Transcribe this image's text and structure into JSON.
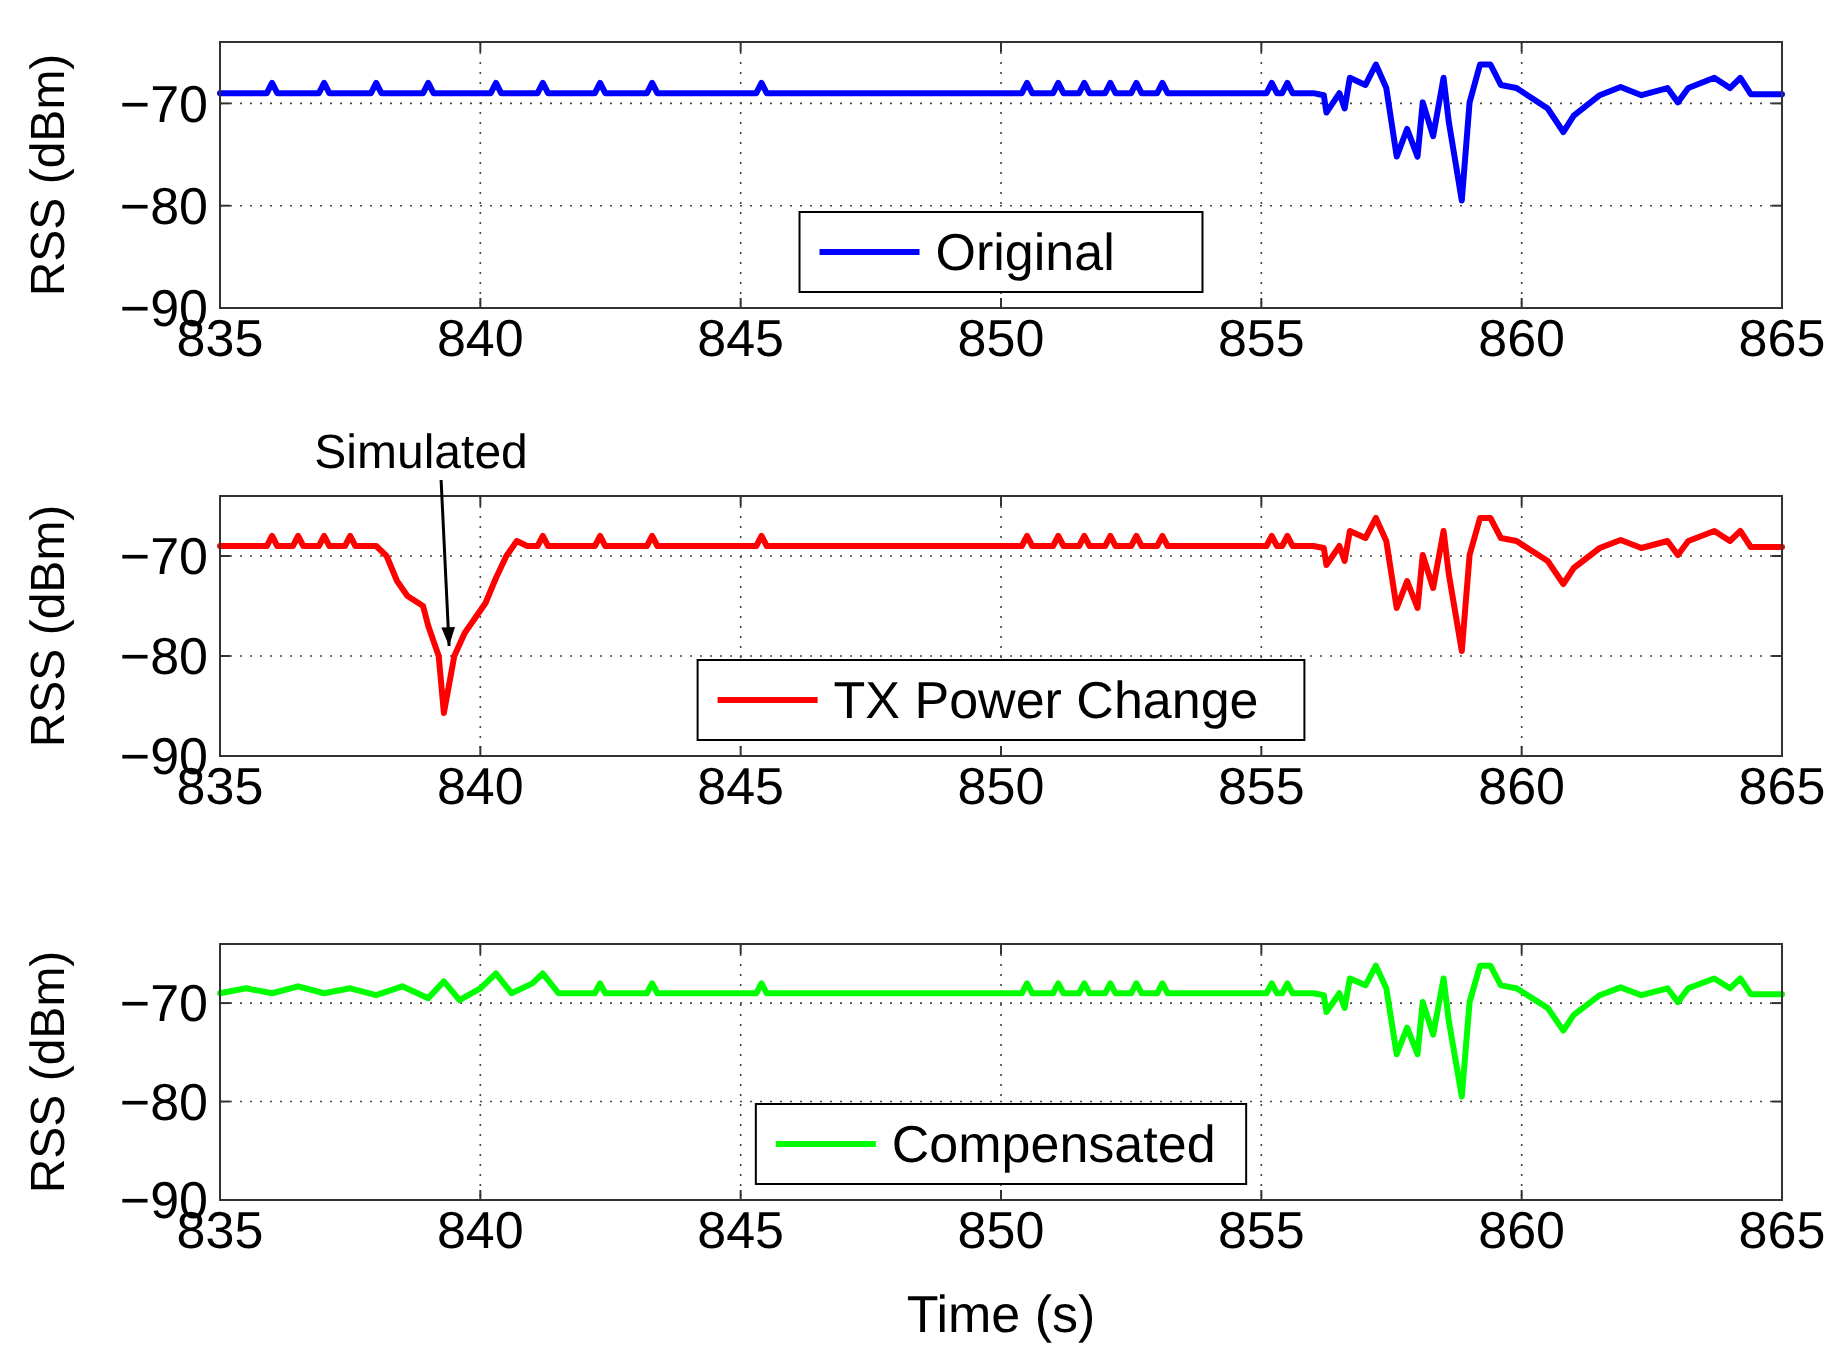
{
  "chart_data": [
    {
      "type": "line",
      "ylabel": "RSS (dBm)",
      "xlim": [
        835,
        865
      ],
      "xticks": [
        835,
        840,
        845,
        850,
        855,
        860,
        865
      ],
      "ylim": [
        -90,
        -64
      ],
      "yticks": [
        -70,
        -80,
        -90
      ],
      "grid": true,
      "legend": "bottom",
      "series": [
        {
          "name": "Original",
          "color": "#0000ff",
          "x": [
            835,
            835.9,
            836,
            836.1,
            836.9,
            837,
            837.1,
            837.9,
            838,
            838.1,
            838.9,
            839,
            839.1,
            840.2,
            840.3,
            840.4,
            841.1,
            841.2,
            841.3,
            842.2,
            842.3,
            842.4,
            843.2,
            843.3,
            843.4,
            845.3,
            845.4,
            845.5,
            850.4,
            850.5,
            850.6,
            851,
            851.1,
            851.2,
            851.5,
            851.6,
            851.7,
            852,
            852.1,
            852.2,
            852.5,
            852.6,
            852.7,
            853,
            853.1,
            853.2,
            855.1,
            855.2,
            855.3,
            855.4,
            855.5,
            855.6,
            856.0,
            856.2,
            856.25,
            856.5,
            856.6,
            856.7,
            857.0,
            857.2,
            857.4,
            857.6,
            857.8,
            858.0,
            858.1,
            858.3,
            858.5,
            858.6,
            858.85,
            859.0,
            859.2,
            859.4,
            859.6,
            859.9,
            860.2,
            860.5,
            860.8,
            861.0,
            861.5,
            861.9,
            862.3,
            862.8,
            863.0,
            863.2,
            863.7,
            864.0,
            864.2,
            864.4,
            865
          ],
          "values": [
            -69,
            -69,
            -68,
            -69,
            -69,
            -68,
            -69,
            -69,
            -68,
            -69,
            -69,
            -68,
            -69,
            -69,
            -68,
            -69,
            -69,
            -68,
            -69,
            -69,
            -68,
            -69,
            -69,
            -68,
            -69,
            -69,
            -68,
            -69,
            -69,
            -68,
            -69,
            -69,
            -68,
            -69,
            -69,
            -68,
            -69,
            -69,
            -68,
            -69,
            -69,
            -68,
            -69,
            -69,
            -68,
            -69,
            -69,
            -68,
            -69,
            -69,
            -68,
            -69,
            -69,
            -69.2,
            -70.9,
            -69,
            -70.5,
            -67.5,
            -68.2,
            -66.2,
            -68.5,
            -75.2,
            -72.5,
            -75.2,
            -69.9,
            -73.2,
            -67.5,
            -71.8,
            -79.5,
            -69.9,
            -66.2,
            -66.2,
            -68.2,
            -68.5,
            -69.5,
            -70.5,
            -72.8,
            -71.2,
            -69.2,
            -68.4,
            -69.2,
            -68.5,
            -69.9,
            -68.5,
            -67.5,
            -68.5,
            -67.5,
            -69.1,
            -69.1
          ]
        }
      ]
    },
    {
      "type": "line",
      "ylabel": "RSS (dBm)",
      "xlim": [
        835,
        865
      ],
      "xticks": [
        835,
        840,
        845,
        850,
        855,
        860,
        865
      ],
      "ylim": [
        -90,
        -64
      ],
      "yticks": [
        -70,
        -80,
        -90
      ],
      "grid": true,
      "legend": "bottom",
      "annotations": [
        {
          "text": "Simulated",
          "x": 839.4,
          "y": -79
        }
      ],
      "series": [
        {
          "name": "TX Power Change",
          "color": "#ff0000",
          "x": [
            835,
            835.9,
            836,
            836.1,
            836.4,
            836.5,
            836.6,
            836.9,
            837,
            837.1,
            837.4,
            837.5,
            837.6,
            838.0,
            838.2,
            838.4,
            838.6,
            838.9,
            839.0,
            839.2,
            839.3,
            839.5,
            839.7,
            839.9,
            840.1,
            840.3,
            840.5,
            840.7,
            840.9,
            841.1,
            841.2,
            841.3,
            842.2,
            842.3,
            842.4,
            843.2,
            843.3,
            843.4,
            845.3,
            845.4,
            845.5,
            850.4,
            850.5,
            850.6,
            851,
            851.1,
            851.2,
            851.5,
            851.6,
            851.7,
            852,
            852.1,
            852.2,
            852.5,
            852.6,
            852.7,
            853,
            853.1,
            853.2,
            855.1,
            855.2,
            855.3,
            855.4,
            855.5,
            855.6,
            856.0,
            856.2,
            856.25,
            856.5,
            856.6,
            856.7,
            857.0,
            857.2,
            857.4,
            857.6,
            857.8,
            858.0,
            858.1,
            858.3,
            858.5,
            858.6,
            858.85,
            859.0,
            859.2,
            859.4,
            859.6,
            859.9,
            860.2,
            860.5,
            860.8,
            861.0,
            861.5,
            861.9,
            862.3,
            862.8,
            863.0,
            863.2,
            863.7,
            864.0,
            864.2,
            864.4,
            865
          ],
          "values": [
            -69,
            -69,
            -68,
            -69,
            -69,
            -68,
            -69,
            -69,
            -68,
            -69,
            -69,
            -68,
            -69,
            -69,
            -70,
            -72.5,
            -74,
            -75,
            -77,
            -80,
            -85.7,
            -80,
            -77.7,
            -76.2,
            -74.7,
            -72.2,
            -70,
            -68.5,
            -69,
            -69,
            -68,
            -69,
            -69,
            -68,
            -69,
            -69,
            -68,
            -69,
            -69,
            -68,
            -69,
            -69,
            -68,
            -69,
            -69,
            -68,
            -69,
            -69,
            -68,
            -69,
            -69,
            -68,
            -69,
            -69,
            -68,
            -69,
            -69,
            -68,
            -69,
            -69,
            -68,
            -69,
            -69,
            -68,
            -69,
            -69,
            -69.2,
            -70.9,
            -69,
            -70.5,
            -67.5,
            -68.2,
            -66.2,
            -68.5,
            -75.2,
            -72.5,
            -75.2,
            -69.9,
            -73.2,
            -67.5,
            -71.8,
            -79.5,
            -69.9,
            -66.2,
            -66.2,
            -68.2,
            -68.5,
            -69.5,
            -70.5,
            -72.8,
            -71.2,
            -69.2,
            -68.4,
            -69.2,
            -68.5,
            -69.9,
            -68.5,
            -67.5,
            -68.5,
            -67.5,
            -69.1,
            -69.1
          ]
        }
      ]
    },
    {
      "type": "line",
      "xlabel": "Time (s)",
      "ylabel": "RSS (dBm)",
      "xlim": [
        835,
        865
      ],
      "xticks": [
        835,
        840,
        845,
        850,
        855,
        860,
        865
      ],
      "ylim": [
        -90,
        -64
      ],
      "yticks": [
        -70,
        -80,
        -90
      ],
      "grid": true,
      "legend": "bottom",
      "series": [
        {
          "name": "Compensated",
          "color": "#00ff00",
          "x": [
            835,
            835.5,
            836,
            836.5,
            837,
            837.5,
            838,
            838.5,
            839,
            839.3,
            839.6,
            840,
            840.3,
            840.6,
            841,
            841.2,
            841.5,
            842,
            842.2,
            842.3,
            842.4,
            843.2,
            843.3,
            843.4,
            845.3,
            845.4,
            845.5,
            850.4,
            850.5,
            850.6,
            851,
            851.1,
            851.2,
            851.5,
            851.6,
            851.7,
            852,
            852.1,
            852.2,
            852.5,
            852.6,
            852.7,
            853,
            853.1,
            853.2,
            855.1,
            855.2,
            855.3,
            855.4,
            855.5,
            855.6,
            856.0,
            856.2,
            856.25,
            856.5,
            856.6,
            856.7,
            857.0,
            857.2,
            857.4,
            857.6,
            857.8,
            858.0,
            858.1,
            858.3,
            858.5,
            858.6,
            858.85,
            859.0,
            859.2,
            859.4,
            859.6,
            859.9,
            860.2,
            860.5,
            860.8,
            861.0,
            861.5,
            861.9,
            862.3,
            862.8,
            863.0,
            863.2,
            863.7,
            864.0,
            864.2,
            864.4,
            865
          ],
          "values": [
            -69,
            -68.5,
            -69,
            -68.3,
            -69,
            -68.5,
            -69.2,
            -68.3,
            -69.5,
            -67.8,
            -69.7,
            -68.5,
            -67,
            -69,
            -68,
            -67,
            -69,
            -69,
            -69,
            -68,
            -69,
            -69,
            -68,
            -69,
            -69,
            -68,
            -69,
            -69,
            -68,
            -69,
            -69,
            -68,
            -69,
            -69,
            -68,
            -69,
            -69,
            -68,
            -69,
            -69,
            -68,
            -69,
            -69,
            -68,
            -69,
            -69,
            -68,
            -69,
            -69,
            -68,
            -69,
            -69,
            -69.2,
            -70.9,
            -69,
            -70.5,
            -67.5,
            -68.2,
            -66.2,
            -68.5,
            -75.2,
            -72.5,
            -75.2,
            -69.9,
            -73.2,
            -67.5,
            -71.8,
            -79.5,
            -69.9,
            -66.2,
            -66.2,
            -68.2,
            -68.5,
            -69.5,
            -70.5,
            -72.8,
            -71.2,
            -69.2,
            -68.4,
            -69.2,
            -68.5,
            -69.9,
            -68.5,
            -67.5,
            -68.5,
            -67.5,
            -69.1,
            -69.1
          ]
        }
      ]
    }
  ]
}
